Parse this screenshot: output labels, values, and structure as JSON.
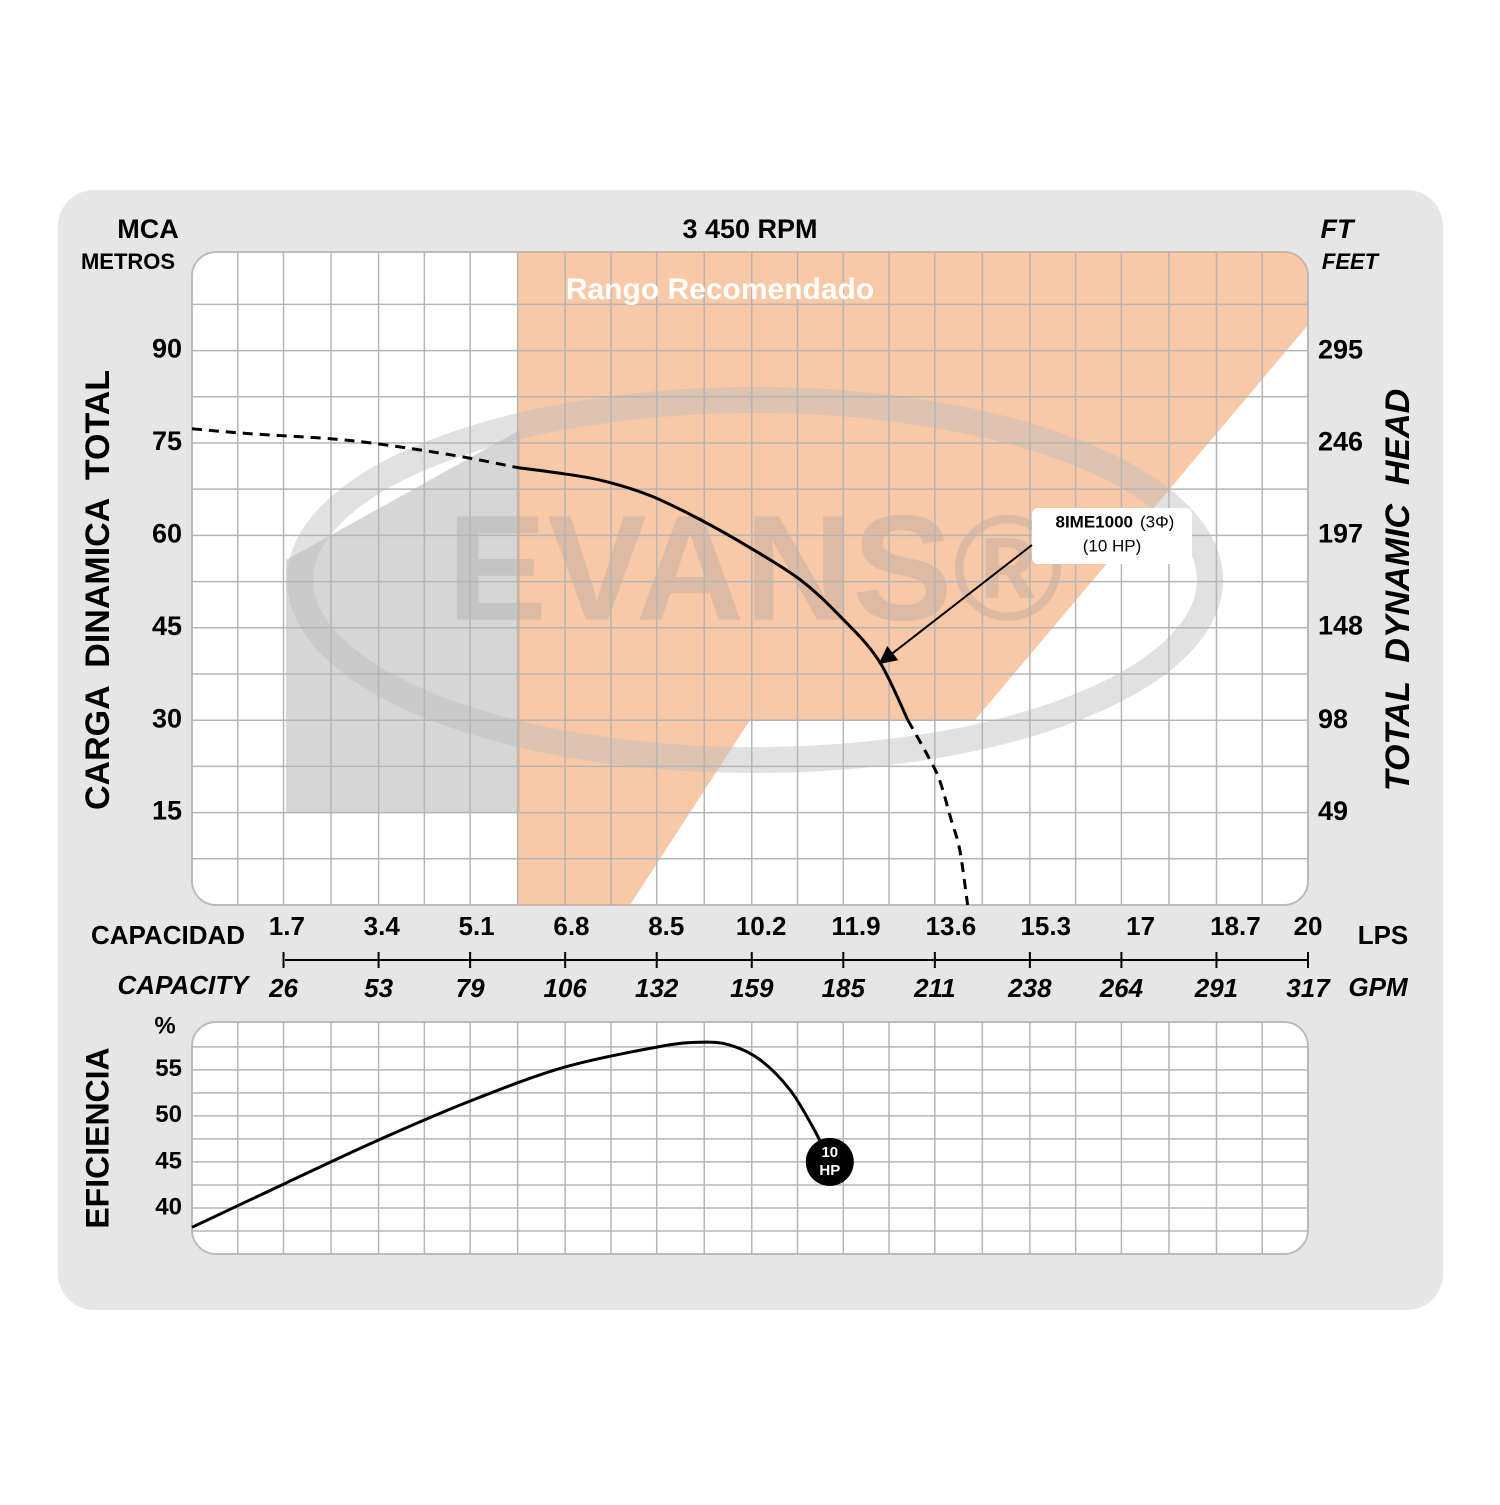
{
  "chart_data": [
    {
      "type": "line",
      "title": "3 450 RPM",
      "y_label_top": "MCA",
      "y_label_unit": "METROS",
      "y2_label_top": "FT",
      "y2_label_unit": "FEET",
      "y_label": "CARGA  DINAMICA  TOTAL",
      "y2_label": "TOTAL  DYNAMIC  HEAD",
      "x_label": "CAPACIDAD",
      "x_unit": "LPS",
      "x2_label": "CAPACITY",
      "x2_unit": "GPM",
      "region_label": "Rango Recomendado",
      "watermark": "EVANS®",
      "annotation": {
        "model": "8IME1000",
        "phase": "(3Φ)",
        "power": "(10 HP)"
      },
      "xlim": [
        0,
        20
      ],
      "xticks": [
        1.7,
        3.4,
        5.1,
        6.8,
        8.5,
        10.2,
        11.9,
        13.6,
        15.3,
        17,
        18.7,
        20
      ],
      "x2lim": [
        0,
        317
      ],
      "x2ticks": [
        26,
        53,
        79,
        106,
        132,
        159,
        185,
        211,
        238,
        264,
        291,
        317
      ],
      "ylim": [
        0,
        106
      ],
      "yticks": [
        15,
        30,
        45,
        60,
        75,
        90
      ],
      "y2lim": [
        0,
        348
      ],
      "y2ticks": [
        49,
        98,
        148,
        197,
        246,
        295
      ],
      "grid": true,
      "series": [
        {
          "color": "#000000",
          "dashed": true,
          "x": [
            0,
            1.04,
            2.83,
            4.62,
            5.84
          ],
          "values": [
            77.3,
            76.5,
            75.4,
            73.1,
            71
          ]
        },
        {
          "color": "#000000",
          "dashed": false,
          "x": [
            5.84,
            6.5,
            7.3,
            8.2,
            9.1,
            10,
            10.9,
            11.6,
            12.3,
            12.83
          ],
          "values": [
            71,
            70.2,
            69,
            66.5,
            62.6,
            58,
            52.8,
            47,
            39.8,
            30
          ]
        },
        {
          "color": "#000000",
          "dashed": true,
          "x": [
            12.83,
            13.2,
            13.4,
            13.6,
            13.76,
            13.9
          ],
          "values": [
            30,
            24,
            20.2,
            14,
            8.9,
            0
          ]
        }
      ]
    },
    {
      "type": "line",
      "y_label": "EFICIENCIA",
      "y_unit": "%",
      "xlim": [
        0,
        20
      ],
      "ylim": [
        35,
        60.2
      ],
      "yticks": [
        40,
        45,
        50,
        55
      ],
      "grid": true,
      "color": "#000000",
      "x": [
        0,
        1.68,
        3.35,
        5.02,
        6.68,
        8.35,
        9.1,
        9.64,
        10.18,
        10.72,
        11.16,
        11.43
      ],
      "values": [
        37.9,
        42.7,
        47.4,
        51.7,
        55.3,
        57.5,
        58,
        57.7,
        56.1,
        52.8,
        48.4,
        45
      ],
      "marker_label": [
        "10",
        "HP"
      ]
    }
  ]
}
